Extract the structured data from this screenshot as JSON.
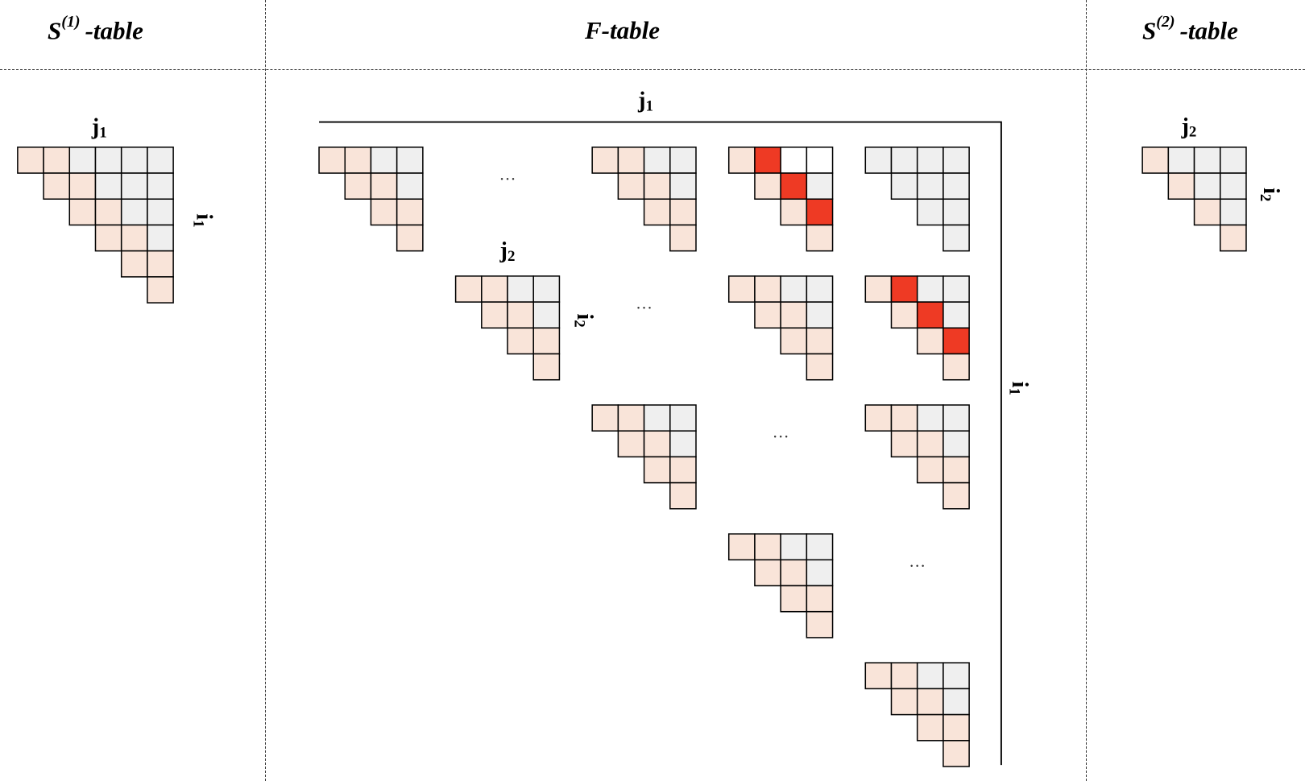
{
  "headers": {
    "s1": {
      "base": "S",
      "sup": "(1)",
      "rest": "-table"
    },
    "f": {
      "label": "F-table"
    },
    "s2": {
      "base": "S",
      "sup": "(2)",
      "rest": "-table"
    }
  },
  "labels": {
    "j1": {
      "base": "j",
      "sub": "1"
    },
    "i1": {
      "base": "i",
      "sub": "1"
    },
    "j2": {
      "base": "j",
      "sub": "2"
    },
    "i2": {
      "base": "i",
      "sub": "2"
    }
  },
  "ellipsis": "…",
  "colors": {
    "pink": "#f9e4d9",
    "gray": "#efefef",
    "red": "#ee3a24",
    "white": "#ffffff",
    "border": "#000000"
  },
  "s1_table": {
    "size": 6,
    "pink_cells": [
      [
        0,
        0
      ],
      [
        0,
        1
      ],
      [
        1,
        1
      ],
      [
        1,
        2
      ],
      [
        2,
        2
      ],
      [
        2,
        3
      ],
      [
        3,
        3
      ],
      [
        3,
        4
      ],
      [
        4,
        4
      ],
      [
        4,
        5
      ],
      [
        5,
        5
      ]
    ]
  },
  "s2_table": {
    "size": 4,
    "pink_cells": [
      [
        0,
        0
      ],
      [
        1,
        1
      ],
      [
        2,
        2
      ],
      [
        3,
        3
      ]
    ]
  },
  "f_table": {
    "block_size": 4,
    "blocks": [
      {
        "row": 0,
        "col": 0,
        "type": "band"
      },
      {
        "row": 0,
        "col": 2,
        "type": "band"
      },
      {
        "row": 0,
        "col": 3,
        "type": "red",
        "red_cells": [
          [
            0,
            1
          ],
          [
            1,
            2
          ],
          [
            2,
            3
          ]
        ],
        "white_cells": [
          [
            0,
            2
          ],
          [
            0,
            3
          ]
        ]
      },
      {
        "row": 0,
        "col": 4,
        "type": "gray"
      },
      {
        "row": 1,
        "col": 1,
        "type": "band"
      },
      {
        "row": 1,
        "col": 3,
        "type": "band"
      },
      {
        "row": 1,
        "col": 4,
        "type": "red",
        "red_cells": [
          [
            0,
            1
          ],
          [
            1,
            2
          ],
          [
            2,
            3
          ]
        ],
        "white_cells": []
      },
      {
        "row": 2,
        "col": 2,
        "type": "band"
      },
      {
        "row": 2,
        "col": 4,
        "type": "band"
      },
      {
        "row": 3,
        "col": 3,
        "type": "band"
      },
      {
        "row": 4,
        "col": 4,
        "type": "band"
      }
    ],
    "dots": [
      {
        "row": 0,
        "col": 1
      },
      {
        "row": 1,
        "col": 2
      },
      {
        "row": 2,
        "col": 3
      },
      {
        "row": 3,
        "col": 4
      }
    ]
  }
}
